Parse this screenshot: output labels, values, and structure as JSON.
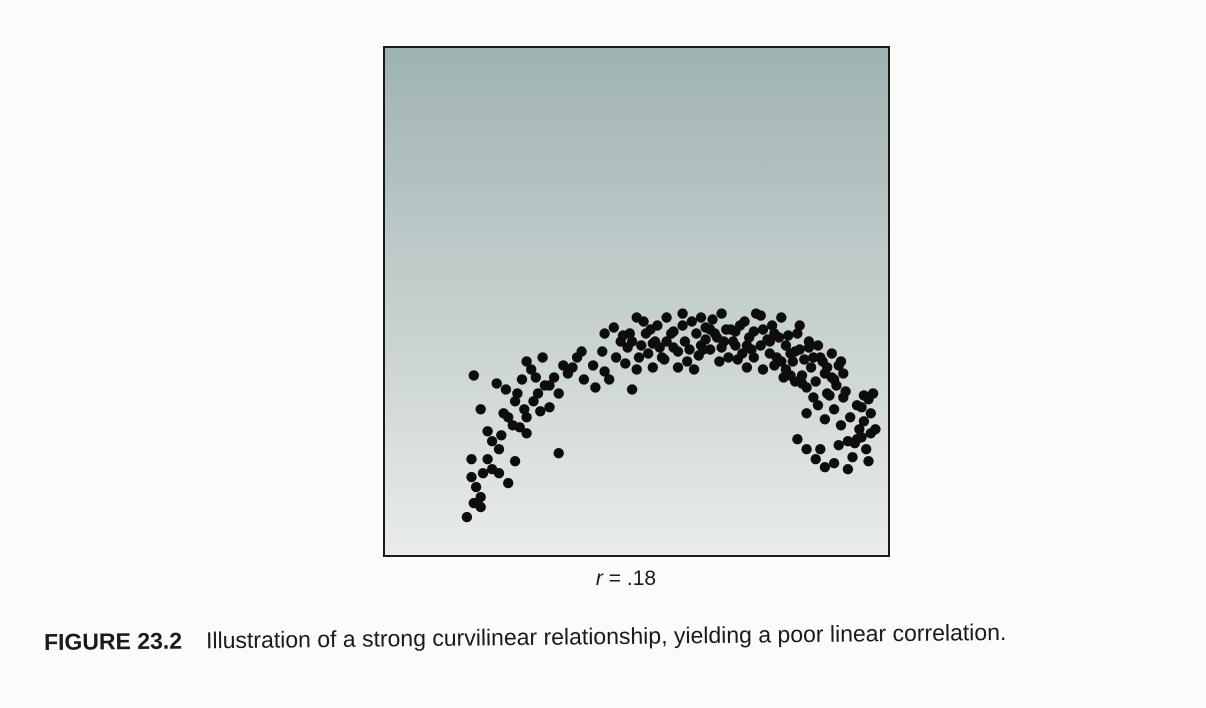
{
  "chart_data": {
    "type": "scatter",
    "title": "",
    "xlabel": "",
    "ylabel": "",
    "xlim": [
      0,
      100
    ],
    "ylim": [
      0,
      100
    ],
    "grid": false,
    "legend": "none",
    "points": [
      [
        10,
        5
      ],
      [
        13,
        7.5
      ],
      [
        11.5,
        8.5
      ],
      [
        13,
        10
      ],
      [
        12,
        12.5
      ],
      [
        11,
        15
      ],
      [
        13.5,
        16
      ],
      [
        15.5,
        17
      ],
      [
        17,
        16
      ],
      [
        19,
        13.5
      ],
      [
        11,
        19.5
      ],
      [
        14.5,
        19.5
      ],
      [
        15.5,
        24
      ],
      [
        17,
        22
      ],
      [
        20.5,
        19
      ],
      [
        17.5,
        25.5
      ],
      [
        21.5,
        27.5
      ],
      [
        23,
        26
      ],
      [
        20,
        28
      ],
      [
        19,
        30
      ],
      [
        14.5,
        26.5
      ],
      [
        13,
        32
      ],
      [
        23,
        30
      ],
      [
        20.5,
        34
      ],
      [
        22.5,
        32
      ],
      [
        24.5,
        34
      ],
      [
        26,
        31.5
      ],
      [
        18,
        31
      ],
      [
        28,
        32.5
      ],
      [
        21,
        36
      ],
      [
        25.5,
        36
      ],
      [
        27,
        38
      ],
      [
        29,
        40
      ],
      [
        22,
        39.5
      ],
      [
        25,
        40
      ],
      [
        24,
        42
      ],
      [
        26.5,
        45
      ],
      [
        28,
        38
      ],
      [
        30,
        36
      ],
      [
        30,
        21
      ],
      [
        11.5,
        40.5
      ],
      [
        16.5,
        38.5
      ],
      [
        18.5,
        37
      ],
      [
        23,
        44
      ],
      [
        31,
        43
      ],
      [
        32,
        41
      ],
      [
        33,
        42.5
      ],
      [
        34,
        45
      ],
      [
        35,
        46.5
      ],
      [
        35.5,
        39.5
      ],
      [
        37.5,
        43
      ],
      [
        38,
        37.5
      ],
      [
        39.5,
        46.5
      ],
      [
        40,
        41.5
      ],
      [
        41,
        39.5
      ],
      [
        42.5,
        45
      ],
      [
        43.5,
        49
      ],
      [
        44.5,
        43.5
      ],
      [
        45,
        47.5
      ],
      [
        45.5,
        51
      ],
      [
        46,
        37
      ],
      [
        47,
        42
      ],
      [
        47.5,
        45
      ],
      [
        48,
        48
      ],
      [
        49.5,
        46
      ],
      [
        49,
        51
      ],
      [
        48.5,
        54
      ],
      [
        47,
        55
      ],
      [
        50.5,
        48.5
      ],
      [
        50.5,
        42.5
      ],
      [
        52,
        47.5
      ],
      [
        51.5,
        53
      ],
      [
        52.5,
        45
      ],
      [
        53.5,
        49
      ],
      [
        53.5,
        55
      ],
      [
        54.5,
        51
      ],
      [
        55,
        47.5
      ],
      [
        56,
        42.5
      ],
      [
        56,
        46.5
      ],
      [
        57,
        53
      ],
      [
        57.5,
        49
      ],
      [
        57,
        56
      ],
      [
        58.5,
        47
      ],
      [
        59,
        54
      ],
      [
        60,
        51
      ],
      [
        60.5,
        45.5
      ],
      [
        61,
        48
      ],
      [
        61,
        55
      ],
      [
        62,
        52.5
      ],
      [
        62,
        49.5
      ],
      [
        63,
        47
      ],
      [
        63.5,
        54.5
      ],
      [
        64,
        51
      ],
      [
        64.5,
        50
      ],
      [
        65,
        44
      ],
      [
        65.5,
        47.5
      ],
      [
        65.5,
        56
      ],
      [
        66.5,
        52
      ],
      [
        67,
        45
      ],
      [
        68,
        49
      ],
      [
        68.5,
        48
      ],
      [
        68.5,
        51.5
      ],
      [
        69.5,
        53
      ],
      [
        70,
        46
      ],
      [
        70.5,
        54
      ],
      [
        71,
        48
      ],
      [
        71.5,
        50
      ],
      [
        72,
        47
      ],
      [
        72.5,
        51.5
      ],
      [
        73,
        56
      ],
      [
        74,
        48
      ],
      [
        74.5,
        42
      ],
      [
        74.5,
        52
      ],
      [
        75.5,
        49.5
      ],
      [
        76,
        46
      ],
      [
        76.5,
        53
      ],
      [
        77,
        51
      ],
      [
        77.5,
        45
      ],
      [
        78,
        50
      ],
      [
        78.5,
        44
      ],
      [
        78.5,
        55
      ],
      [
        79.5,
        48
      ],
      [
        79.5,
        42
      ],
      [
        80,
        50.5
      ],
      [
        80.5,
        40.5
      ],
      [
        81,
        44
      ],
      [
        81.5,
        46.5
      ],
      [
        81.5,
        39
      ],
      [
        82,
        51
      ],
      [
        82.5,
        47
      ],
      [
        83,
        40.5
      ],
      [
        83,
        38.5
      ],
      [
        83.5,
        44.5
      ],
      [
        84,
        37.5
      ],
      [
        84,
        31
      ],
      [
        84.5,
        47.5
      ],
      [
        85,
        42.5
      ],
      [
        85.5,
        35
      ],
      [
        86,
        39
      ],
      [
        86.5,
        33
      ],
      [
        87,
        45
      ],
      [
        87.5,
        44
      ],
      [
        88,
        41
      ],
      [
        88,
        29.5
      ],
      [
        88.5,
        36
      ],
      [
        89,
        35.5
      ],
      [
        89.5,
        40
      ],
      [
        90,
        32
      ],
      [
        90.5,
        38
      ],
      [
        91,
        43
      ],
      [
        91.5,
        44
      ],
      [
        91.5,
        28
      ],
      [
        92,
        35
      ],
      [
        92.5,
        36.5
      ],
      [
        93,
        24
      ],
      [
        93.5,
        30
      ],
      [
        94,
        20
      ],
      [
        94.5,
        23.5
      ],
      [
        95.5,
        27
      ],
      [
        95,
        33
      ],
      [
        96,
        32.5
      ],
      [
        96,
        25
      ],
      [
        96.5,
        29
      ],
      [
        97,
        22
      ],
      [
        97.5,
        34.5
      ],
      [
        98,
        31
      ],
      [
        98,
        26
      ],
      [
        99,
        27
      ],
      [
        96.5,
        35.5
      ],
      [
        98.5,
        36
      ],
      [
        82,
        24.5
      ],
      [
        84,
        22
      ],
      [
        86,
        19.5
      ],
      [
        87,
        22
      ],
      [
        88,
        17.5
      ],
      [
        90,
        18.5
      ],
      [
        91,
        23
      ],
      [
        93,
        17
      ],
      [
        95,
        24.5
      ],
      [
        97.5,
        19
      ],
      [
        40,
        51
      ],
      [
        42,
        52.5
      ],
      [
        44,
        50.5
      ],
      [
        46,
        49
      ],
      [
        50,
        52
      ],
      [
        51,
        49
      ],
      [
        53,
        44.5
      ],
      [
        55,
        51.5
      ],
      [
        58,
        44
      ],
      [
        59.5,
        42
      ],
      [
        61.5,
        47
      ],
      [
        63,
        52
      ],
      [
        66,
        49
      ],
      [
        67.5,
        52
      ],
      [
        69,
        44.5
      ],
      [
        71,
        42.5
      ],
      [
        72.5,
        45
      ],
      [
        74,
        55.5
      ],
      [
        76,
        49
      ],
      [
        77,
        43
      ],
      [
        79,
        40
      ],
      [
        80.5,
        46
      ],
      [
        82.5,
        53
      ],
      [
        84.5,
        49
      ],
      [
        85.5,
        45
      ],
      [
        86.5,
        48
      ],
      [
        88.5,
        42.5
      ],
      [
        89.5,
        46
      ],
      [
        90,
        39.5
      ],
      [
        92,
        41
      ]
    ]
  },
  "annotation": {
    "r_symbol": "r",
    "r_rest": " = .18"
  },
  "caption": {
    "figure_number": "FIGURE 23.2",
    "text": "Illustration of a strong curvilinear relationship, yielding a poor linear correlation."
  },
  "colors": {
    "plot_top": "#9fb2b1",
    "plot_bottom": "#e9ecea",
    "point": "#0d0d0d",
    "frame": "#1a1a1a"
  }
}
